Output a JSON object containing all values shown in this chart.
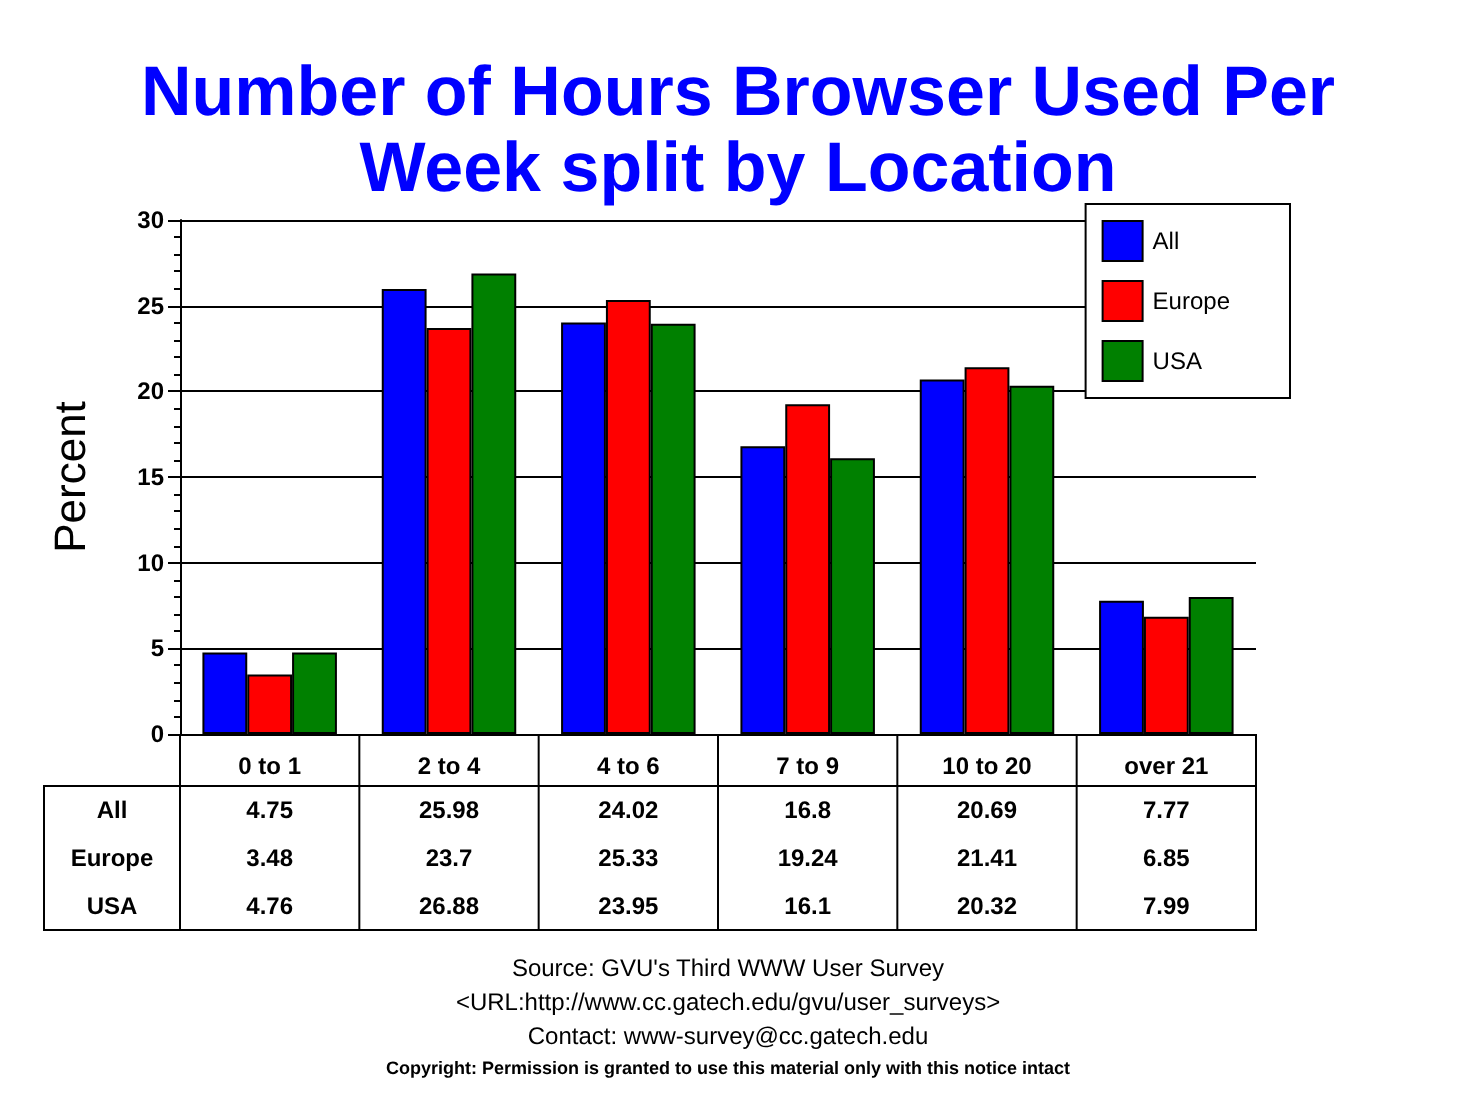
{
  "chart_data": {
    "type": "bar",
    "title": "Number of Hours Browser Used Per\nWeek split by Location",
    "ylabel": "Percent",
    "categories": [
      "0 to 1",
      "2 to 4",
      "4 to 6",
      "7 to 9",
      "10 to 20",
      "over 21"
    ],
    "series": [
      {
        "name": "All",
        "color": "#0000ff",
        "values": [
          4.75,
          25.98,
          24.02,
          16.8,
          20.69,
          7.77
        ]
      },
      {
        "name": "Europe",
        "color": "#ff0000",
        "values": [
          3.48,
          23.7,
          25.33,
          19.24,
          21.41,
          6.85
        ]
      },
      {
        "name": "USA",
        "color": "#008000",
        "values": [
          4.76,
          26.88,
          23.95,
          16.1,
          20.32,
          7.99
        ]
      }
    ],
    "ylim": [
      0,
      30
    ],
    "yticks": [
      0,
      5,
      10,
      15,
      20,
      25,
      30
    ],
    "grid": "y",
    "legend": "top right",
    "data_labels": true,
    "annotations": [
      "Source: GVU's Third WWW User Survey",
      "<URL:http://www.cc.gatech.edu/gvu/user_surveys>",
      "Contact: www-survey@cc.gatech.edu",
      "Copyright: Permission is granted to use this material only with this notice intact"
    ]
  }
}
